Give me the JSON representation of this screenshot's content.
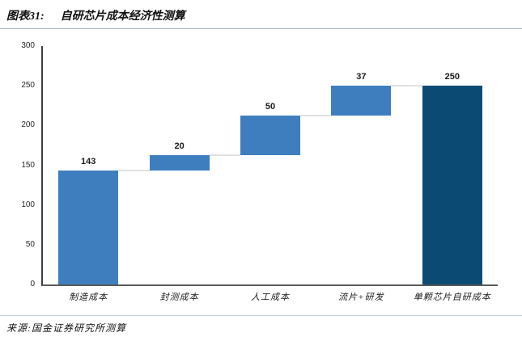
{
  "header": {
    "figure_label": "图表31:",
    "figure_title": "自研芯片成本经济性测算"
  },
  "source": {
    "text": "来源:国金证券研究所测算"
  },
  "chart_data": {
    "type": "bar",
    "subtype": "waterfall",
    "title": "自研芯片成本经济性测算",
    "categories": [
      "制造成本",
      "封测成本",
      "人工成本",
      "流片+研发",
      "单颗芯片自研成本"
    ],
    "values": [
      143,
      20,
      50,
      37,
      250
    ],
    "segment_start": [
      0,
      143,
      163,
      213,
      0
    ],
    "segment_end": [
      143,
      163,
      213,
      250,
      250
    ],
    "data_labels": [
      "143",
      "20",
      "50",
      "37",
      "250"
    ],
    "is_total": [
      false,
      false,
      false,
      false,
      true
    ],
    "xlabel": "",
    "ylabel": "",
    "ylim": [
      0,
      300
    ],
    "yticks": [
      0,
      50,
      100,
      150,
      200,
      250,
      300
    ],
    "grid": false,
    "legend": "none",
    "colors": {
      "step_bar": "#3E7EBF",
      "total_bar": "#0A4A73",
      "connector": "#E0E0E0",
      "axis": "#4a4a4a",
      "title_rule": "#9db4c6"
    }
  }
}
